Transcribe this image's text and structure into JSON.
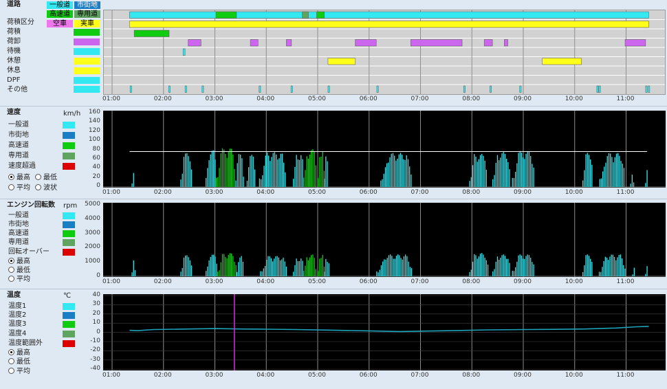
{
  "colors": {
    "ippan": "#33e8f0",
    "shigaichi": "#1a7ec4",
    "kosoku": "#10cc10",
    "senyo": "#5fa55f",
    "exceed": "#dd0000",
    "loaded": "#ffff1a",
    "unload": "#cc66ee",
    "rest": "#ffff1a",
    "chart_bg": "#000000",
    "temp_line": "#1da3bc",
    "marker": "#cc33cc"
  },
  "status": {
    "road_label": "道路",
    "road_chips": [
      "一般道",
      "市街地",
      "高速道",
      "専用道"
    ],
    "cargo_label": "荷積区分",
    "cargo_chips": [
      "空車",
      "実車"
    ],
    "rows": [
      "荷積",
      "荷卸",
      "待機",
      "休憩",
      "休息",
      "DPF",
      "その他"
    ]
  },
  "time_axis": [
    "01:00",
    "02:00",
    "03:00",
    "04:00",
    "05:00",
    "06:00",
    "07:00",
    "08:00",
    "09:00",
    "10:00",
    "11:00"
  ],
  "speed": {
    "title": "速度",
    "unit": "km/h",
    "legend": [
      "一般道",
      "市街地",
      "高速道",
      "専用道",
      "速度超過"
    ],
    "options": [
      "最高",
      "最低",
      "平均",
      "波状"
    ],
    "selected_option": "最高",
    "y_ticks": [
      "160",
      "140",
      "120",
      "100",
      "80",
      "60",
      "40",
      "20",
      "0"
    ]
  },
  "rpm": {
    "title": "エンジン回転数",
    "unit": "rpm",
    "legend": [
      "一般道",
      "市街地",
      "高速道",
      "専用道",
      "回転オーバー"
    ],
    "options": [
      "最高",
      "最低",
      "平均"
    ],
    "selected_option": "最高",
    "y_ticks": [
      "5000",
      "4000",
      "3000",
      "2000",
      "1000",
      "0"
    ]
  },
  "temp": {
    "title": "温度",
    "unit": "℃",
    "legend": [
      "温度1",
      "温度2",
      "温度3",
      "温度4",
      "温度範囲外"
    ],
    "options": [
      "最高",
      "最低",
      "平均"
    ],
    "selected_option": "最高",
    "y_ticks": [
      "40",
      "30",
      "20",
      "10",
      "0",
      "-10",
      "-20",
      "-30",
      "-40"
    ]
  }
}
